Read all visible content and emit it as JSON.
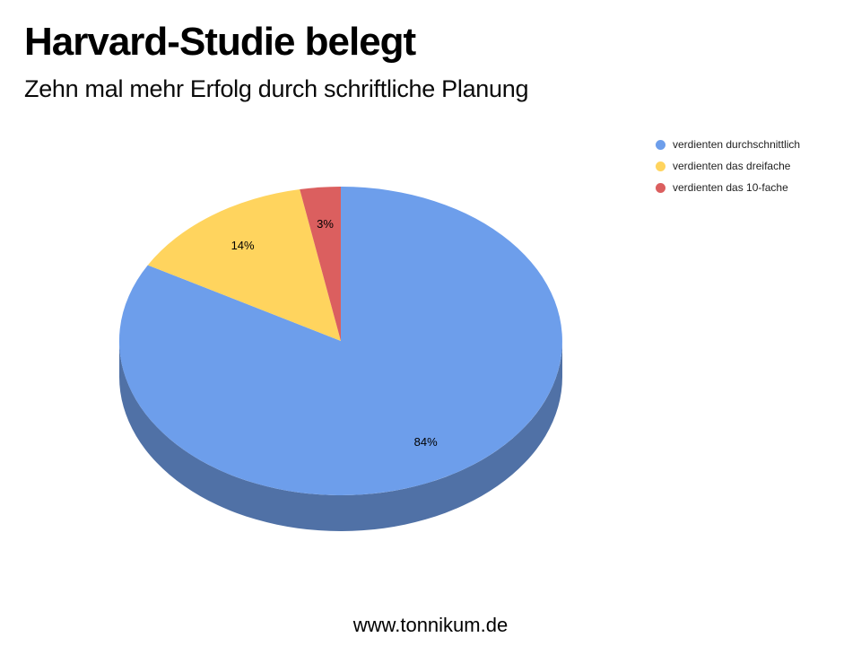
{
  "slide": {
    "title": "Harvard-Studie belegt",
    "subtitle": "Zehn mal mehr Erfolg durch schriftliche Planung",
    "footer": "www.tonnikum.de"
  },
  "chart_data": {
    "type": "pie",
    "three_d": true,
    "title": "",
    "categories": [
      "verdienten durchschnittlich",
      "verdienten das dreifache",
      "verdienten das 10-fache"
    ],
    "values": [
      84,
      14,
      3
    ],
    "value_labels": [
      "84%",
      "14%",
      "3%"
    ],
    "colors": [
      "#6D9EEB",
      "#FFD45E",
      "#DB5F5F"
    ],
    "depth_color": "#5071A6",
    "start_angle_deg": 0,
    "direction": "clockwise",
    "legend_position": "right",
    "label_color": "#000000"
  }
}
